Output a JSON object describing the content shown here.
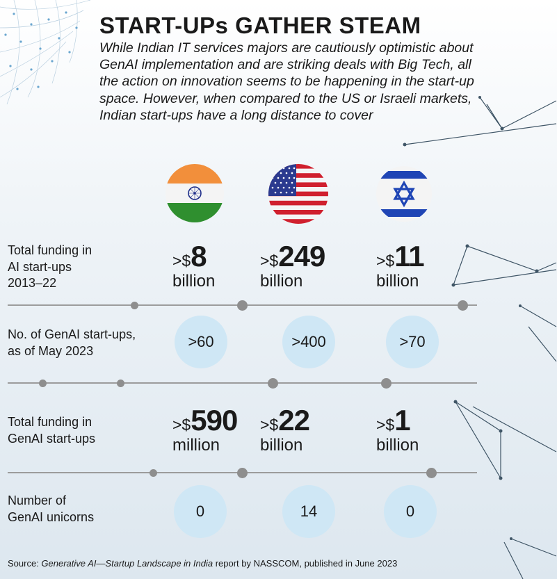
{
  "title": "START-UPs GATHER STEAM",
  "intro": "While Indian IT services majors are cautiously optimistic about GenAI implementation and are striking deals with Big Tech, all the action on innovation seems to be happening in the start-up space. However, when compared to the US or Israeli markets, Indian start-ups have a long distance to cover",
  "countries": [
    {
      "flag": "india-flag-icon"
    },
    {
      "flag": "usa-flag-icon"
    },
    {
      "flag": "israel-flag-icon"
    }
  ],
  "rows": {
    "ai_funding": {
      "label_lines": [
        "Total funding in",
        "AI start-ups",
        "2013–22"
      ],
      "values": [
        {
          "prefix": ">$",
          "number": "8",
          "unit": "billion"
        },
        {
          "prefix": ">$",
          "number": "249",
          "unit": "billion"
        },
        {
          "prefix": ">$",
          "number": "11",
          "unit": "billion"
        }
      ]
    },
    "genai_startups": {
      "label_lines": [
        "No. of GenAI start-ups,",
        "as of May 2023"
      ],
      "values": [
        ">60",
        ">400",
        ">70"
      ]
    },
    "genai_funding": {
      "label_lines": [
        "Total funding in",
        "GenAI start-ups"
      ],
      "values": [
        {
          "prefix": ">$",
          "number": "590",
          "unit": "million"
        },
        {
          "prefix": ">$",
          "number": "22",
          "unit": "billion"
        },
        {
          "prefix": ">$",
          "number": "1",
          "unit": "billion"
        }
      ]
    },
    "genai_unicorns": {
      "label_lines": [
        "Number of",
        "GenAI unicorns"
      ],
      "values": [
        "0",
        "14",
        "0"
      ]
    }
  },
  "source": {
    "prefix": "Source: ",
    "report": "Generative AI—Startup Landscape in India",
    "suffix": " report by NASSCOM, published in June 2023"
  },
  "colors": {
    "india_saffron": "#f28f3b",
    "india_green": "#2f8f2f",
    "usa_red": "#d0202e",
    "usa_blue": "#2b3a8f",
    "israel_blue": "#1f45b5",
    "bubble": "#cfe7f5",
    "divider": "#9c9c9c"
  }
}
